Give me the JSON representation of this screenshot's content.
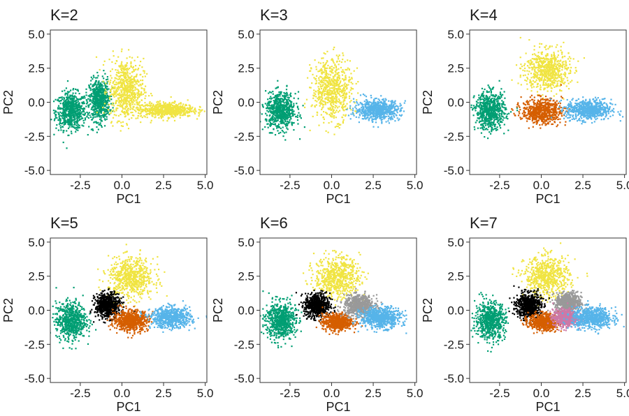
{
  "chart_data": [
    {
      "type": "scatter",
      "title": "K=2",
      "xlabel": "PC1",
      "ylabel": "PC2",
      "xlim": [
        -4.3,
        5.1
      ],
      "ylim": [
        -5.3,
        5.3
      ],
      "xticks": [
        "-2.5",
        "0.0",
        "2.5",
        "5.0"
      ],
      "yticks": [
        "5.0",
        "2.5",
        "0.0",
        "-2.5",
        "-5.0"
      ],
      "grid": false,
      "legend": "none",
      "clusters": [
        {
          "color": "#009E73",
          "center": [
            -3.1,
            -0.6
          ],
          "spread": [
            0.6,
            0.9
          ]
        },
        {
          "color": "#009E73",
          "center": [
            -1.4,
            0.2
          ],
          "spread": [
            0.4,
            1.0
          ]
        },
        {
          "color": "#F0E442",
          "center": [
            0.2,
            1.0
          ],
          "spread": [
            0.7,
            1.5
          ]
        },
        {
          "color": "#F0E442",
          "center": [
            2.6,
            -0.5
          ],
          "spread": [
            1.1,
            0.35
          ]
        }
      ]
    },
    {
      "type": "scatter",
      "title": "K=3",
      "xlabel": "PC1",
      "ylabel": "PC2",
      "xlim": [
        -4.3,
        5.1
      ],
      "ylim": [
        -5.3,
        5.3
      ],
      "xticks": [
        "-2.5",
        "0.0",
        "2.5",
        "5.0"
      ],
      "yticks": [
        "5.0",
        "2.5",
        "0.0",
        "-2.5",
        "-5.0"
      ],
      "grid": false,
      "legend": "none",
      "clusters": [
        {
          "color": "#009E73",
          "center": [
            -3.1,
            -0.6
          ],
          "spread": [
            0.6,
            0.9
          ]
        },
        {
          "color": "#F0E442",
          "center": [
            0.0,
            1.0
          ],
          "spread": [
            0.8,
            1.5
          ]
        },
        {
          "color": "#56B4E9",
          "center": [
            2.7,
            -0.5
          ],
          "spread": [
            0.9,
            0.5
          ]
        }
      ]
    },
    {
      "type": "scatter",
      "title": "K=4",
      "xlabel": "PC1",
      "ylabel": "PC2",
      "xlim": [
        -4.3,
        5.1
      ],
      "ylim": [
        -5.3,
        5.3
      ],
      "xticks": [
        "-2.5",
        "0.0",
        "2.5",
        "5.0"
      ],
      "yticks": [
        "5.0",
        "2.5",
        "0.0",
        "-2.5",
        "-5.0"
      ],
      "grid": false,
      "legend": "none",
      "clusters": [
        {
          "color": "#009E73",
          "center": [
            -3.1,
            -0.6
          ],
          "spread": [
            0.6,
            0.9
          ]
        },
        {
          "color": "#F0E442",
          "center": [
            0.3,
            2.4
          ],
          "spread": [
            0.9,
            1.0
          ]
        },
        {
          "color": "#D55E00",
          "center": [
            0.0,
            -0.6
          ],
          "spread": [
            0.8,
            0.6
          ]
        },
        {
          "color": "#56B4E9",
          "center": [
            2.8,
            -0.5
          ],
          "spread": [
            0.9,
            0.5
          ]
        }
      ]
    },
    {
      "type": "scatter",
      "title": "K=5",
      "xlabel": "PC1",
      "ylabel": "PC2",
      "xlim": [
        -4.3,
        5.1
      ],
      "ylim": [
        -5.3,
        5.3
      ],
      "xticks": [
        "-2.5",
        "0.0",
        "2.5",
        "5.0"
      ],
      "yticks": [
        "5.0",
        "2.5",
        "0.0",
        "-2.5",
        "-5.0"
      ],
      "grid": false,
      "legend": "none",
      "clusters": [
        {
          "color": "#009E73",
          "center": [
            -3.1,
            -0.7
          ],
          "spread": [
            0.6,
            0.9
          ]
        },
        {
          "color": "#F0E442",
          "center": [
            0.5,
            2.4
          ],
          "spread": [
            0.9,
            1.0
          ]
        },
        {
          "color": "#000000",
          "center": [
            -0.9,
            0.4
          ],
          "spread": [
            0.5,
            0.6
          ]
        },
        {
          "color": "#D55E00",
          "center": [
            0.5,
            -0.7
          ],
          "spread": [
            0.7,
            0.5
          ]
        },
        {
          "color": "#56B4E9",
          "center": [
            2.9,
            -0.5
          ],
          "spread": [
            0.8,
            0.5
          ]
        }
      ]
    },
    {
      "type": "scatter",
      "title": "K=6",
      "xlabel": "PC1",
      "ylabel": "PC2",
      "xlim": [
        -4.3,
        5.1
      ],
      "ylim": [
        -5.3,
        5.3
      ],
      "xticks": [
        "-2.5",
        "0.0",
        "2.5",
        "5.0"
      ],
      "yticks": [
        "5.0",
        "2.5",
        "0.0",
        "-2.5",
        "-5.0"
      ],
      "grid": false,
      "legend": "none",
      "clusters": [
        {
          "color": "#009E73",
          "center": [
            -3.1,
            -0.7
          ],
          "spread": [
            0.6,
            0.9
          ]
        },
        {
          "color": "#F0E442",
          "center": [
            0.3,
            2.5
          ],
          "spread": [
            0.9,
            1.0
          ]
        },
        {
          "color": "#000000",
          "center": [
            -0.9,
            0.4
          ],
          "spread": [
            0.5,
            0.6
          ]
        },
        {
          "color": "#D55E00",
          "center": [
            0.3,
            -0.8
          ],
          "spread": [
            0.6,
            0.4
          ]
        },
        {
          "color": "#999999",
          "center": [
            1.6,
            0.4
          ],
          "spread": [
            0.6,
            0.5
          ]
        },
        {
          "color": "#56B4E9",
          "center": [
            2.9,
            -0.5
          ],
          "spread": [
            0.8,
            0.5
          ]
        }
      ]
    },
    {
      "type": "scatter",
      "title": "K=7",
      "xlabel": "PC1",
      "ylabel": "PC2",
      "xlim": [
        -4.3,
        5.1
      ],
      "ylim": [
        -5.3,
        5.3
      ],
      "xticks": [
        "-2.5",
        "0.0",
        "2.5",
        "5.0"
      ],
      "yticks": [
        "5.0",
        "2.5",
        "0.0",
        "-2.5",
        "-5.0"
      ],
      "grid": false,
      "legend": "none",
      "clusters": [
        {
          "color": "#009E73",
          "center": [
            -3.1,
            -0.7
          ],
          "spread": [
            0.6,
            0.9
          ]
        },
        {
          "color": "#F0E442",
          "center": [
            0.3,
            2.5
          ],
          "spread": [
            0.9,
            1.0
          ]
        },
        {
          "color": "#000000",
          "center": [
            -0.8,
            0.4
          ],
          "spread": [
            0.5,
            0.6
          ]
        },
        {
          "color": "#D55E00",
          "center": [
            0.1,
            -0.8
          ],
          "spread": [
            0.6,
            0.4
          ]
        },
        {
          "color": "#999999",
          "center": [
            1.6,
            0.6
          ],
          "spread": [
            0.5,
            0.5
          ]
        },
        {
          "color": "#CC79A7",
          "center": [
            1.4,
            -0.5
          ],
          "spread": [
            0.5,
            0.4
          ]
        },
        {
          "color": "#56B4E9",
          "center": [
            3.0,
            -0.5
          ],
          "spread": [
            0.8,
            0.5
          ]
        }
      ]
    }
  ]
}
